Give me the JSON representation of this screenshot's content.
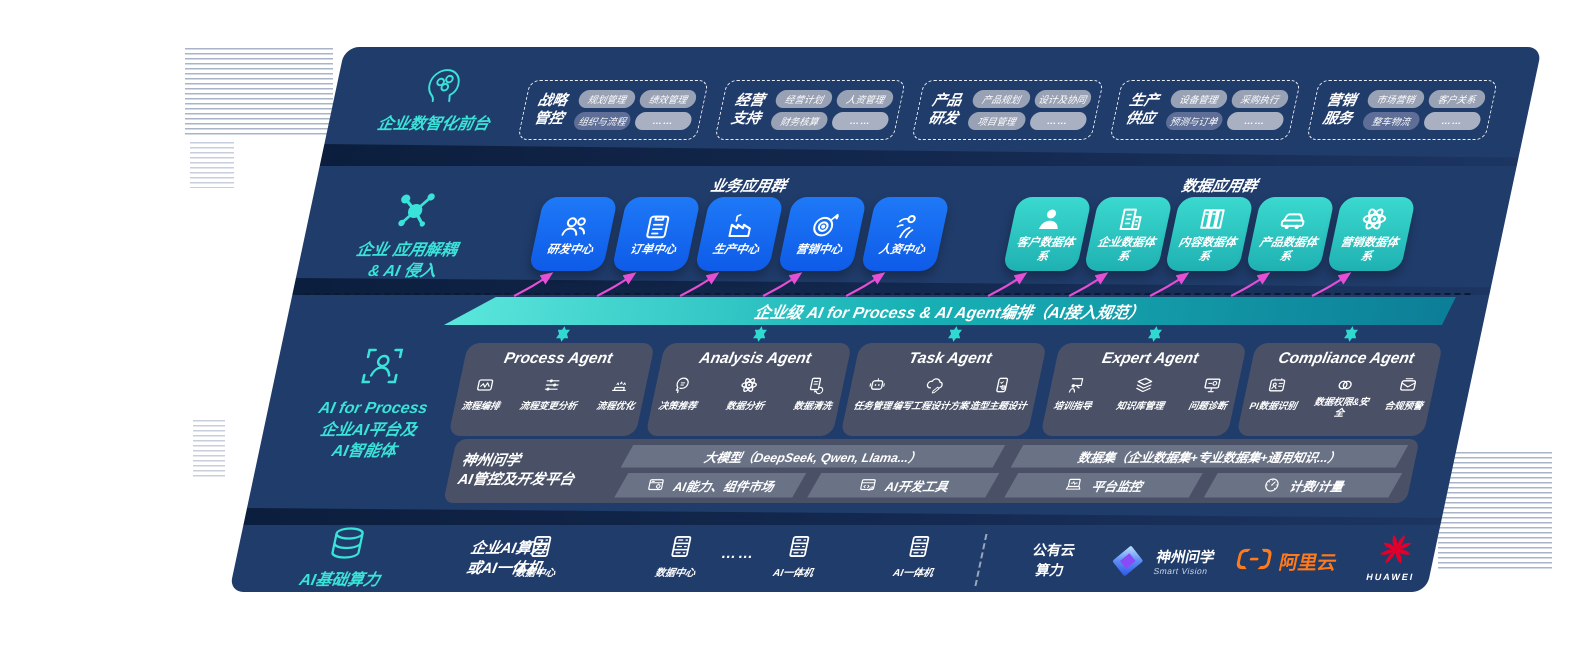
{
  "front_office": {
    "label": "企业数智化前台",
    "groups": [
      {
        "title": [
          "战略",
          "管控"
        ],
        "pills": [
          {
            "label": "规划管理"
          },
          {
            "label": "绩效管理"
          },
          {
            "label": "组织与流程",
            "variant": "dark"
          },
          {
            "label": "……",
            "variant": "dots"
          }
        ]
      },
      {
        "title": [
          "经营",
          "支持"
        ],
        "pills": [
          {
            "label": "经营计划"
          },
          {
            "label": "人资管理"
          },
          {
            "label": "财务核算"
          },
          {
            "label": "……",
            "variant": "dots"
          }
        ]
      },
      {
        "title": [
          "产品",
          "研发"
        ],
        "pills": [
          {
            "label": "产品规划"
          },
          {
            "label": "设计及协同"
          },
          {
            "label": "项目管理"
          },
          {
            "label": "……",
            "variant": "dots"
          }
        ]
      },
      {
        "title": [
          "生产",
          "供应"
        ],
        "pills": [
          {
            "label": "设备管理"
          },
          {
            "label": "采购执行"
          },
          {
            "label": "预测与订单",
            "variant": "dark"
          },
          {
            "label": "……",
            "variant": "dots"
          }
        ]
      },
      {
        "title": [
          "营销",
          "服务"
        ],
        "pills": [
          {
            "label": "市场营销"
          },
          {
            "label": "客户关系"
          },
          {
            "label": "整车物流",
            "variant": "dark"
          },
          {
            "label": "……",
            "variant": "dots"
          }
        ]
      }
    ]
  },
  "app_layer": {
    "label_line1": "企业 应用解耦",
    "label_line2": "& AI 侵入",
    "business_title": "业务应用群",
    "data_title": "数据应用群",
    "business_tiles": [
      {
        "label": "研发中心",
        "icon": "team"
      },
      {
        "label": "订单中心",
        "icon": "clipboard"
      },
      {
        "label": "生产中心",
        "icon": "factory"
      },
      {
        "label": "营销中心",
        "icon": "target"
      },
      {
        "label": "人资中心",
        "icon": "people-run"
      }
    ],
    "data_tiles": [
      {
        "label": "客户数据体系",
        "icon": "person"
      },
      {
        "label": "企业数据体系",
        "icon": "building"
      },
      {
        "label": "内容数据体系",
        "icon": "books"
      },
      {
        "label": "产品数据体系",
        "icon": "car"
      },
      {
        "label": "营销数据体系",
        "icon": "atom"
      }
    ]
  },
  "ai_bus": {
    "label": "企业级 AI for Process & AI Agent编排（AI接入规范）"
  },
  "ai_platform": {
    "label_line1": "AI for Process",
    "label_line2": "企业AI平台及",
    "label_line3": "AI智能体",
    "agents": [
      {
        "title": "Process Agent",
        "items": [
          {
            "label": "流程编排",
            "icon": "flow"
          },
          {
            "label": "流程变更分析",
            "icon": "sliders"
          },
          {
            "label": "流程优化",
            "icon": "optimize"
          }
        ]
      },
      {
        "title": "Analysis Agent",
        "items": [
          {
            "label": "决策推荐",
            "icon": "head-gear"
          },
          {
            "label": "数据分析",
            "icon": "atom"
          },
          {
            "label": "数据清洗",
            "icon": "clean"
          }
        ]
      },
      {
        "title": "Task Agent",
        "items": [
          {
            "label": "任务管理",
            "icon": "robot"
          },
          {
            "label": "编写工程设计方案",
            "icon": "cloud-pen"
          },
          {
            "label": "造型主题设计",
            "icon": "tablet-check"
          }
        ]
      },
      {
        "title": "Expert Agent",
        "items": [
          {
            "label": "培训指导",
            "icon": "training"
          },
          {
            "label": "知识库管理",
            "icon": "layers"
          },
          {
            "label": "问题诊断",
            "icon": "diagnose"
          }
        ]
      },
      {
        "title": "Compliance Agent",
        "items": [
          {
            "label": "PI数据识别",
            "icon": "id-card"
          },
          {
            "label": "数据权限&安全",
            "icon": "link",
            "variant": "wrap"
          },
          {
            "label": "合规预警",
            "icon": "mail"
          }
        ]
      }
    ],
    "platform": {
      "label_line1": "神州问学",
      "label_line2": "AI管控及开发平台",
      "model_bar": "大模型（DeepSeek, Qwen, Llama...）",
      "model_cells": [
        {
          "label": "AI能力、组件市场",
          "icon": "market"
        },
        {
          "label": "AI开发工具",
          "icon": "devtools"
        }
      ],
      "data_bar": "数据集（企业数据集+专业数据集+通用知识...）",
      "data_cells": [
        {
          "label": "平台监控",
          "icon": "monitor"
        },
        {
          "label": "计费/计量",
          "icon": "gauge"
        }
      ]
    }
  },
  "infrastructure": {
    "label": "AI基础算力",
    "cluster_line1": "企业AI算力",
    "cluster_line2": "或AI一体机",
    "datacenters": [
      {
        "label": "数据中心",
        "icon": "server"
      },
      {
        "label": "数据中心",
        "icon": "server"
      }
    ],
    "dots": "……",
    "aio_nodes": [
      {
        "label": "AI一体机",
        "icon": "server"
      },
      {
        "label": "AI一体机",
        "icon": "server"
      }
    ],
    "cloud_line1": "公有云",
    "cloud_line2": "算力",
    "vendors": {
      "shenzhou": {
        "name": "神州问学",
        "sub": "Smart Vision"
      },
      "aliyun": {
        "name": "阿里云"
      },
      "huawei": {
        "name": "HUAWEI"
      }
    }
  },
  "colors": {
    "background_navy": "#203C6B",
    "accent_teal": "#3AE3D8",
    "tile_blue": "#1570F2",
    "tile_teal": "#2EC9C2",
    "bus_teal_start": "#5BE7DC",
    "bus_teal_end": "#0C7E97",
    "arrow_magenta": "#E44FD6",
    "agent_box": "#4A5166",
    "aliyun_orange": "#FF6A00",
    "huawei_red": "#E4002B"
  }
}
